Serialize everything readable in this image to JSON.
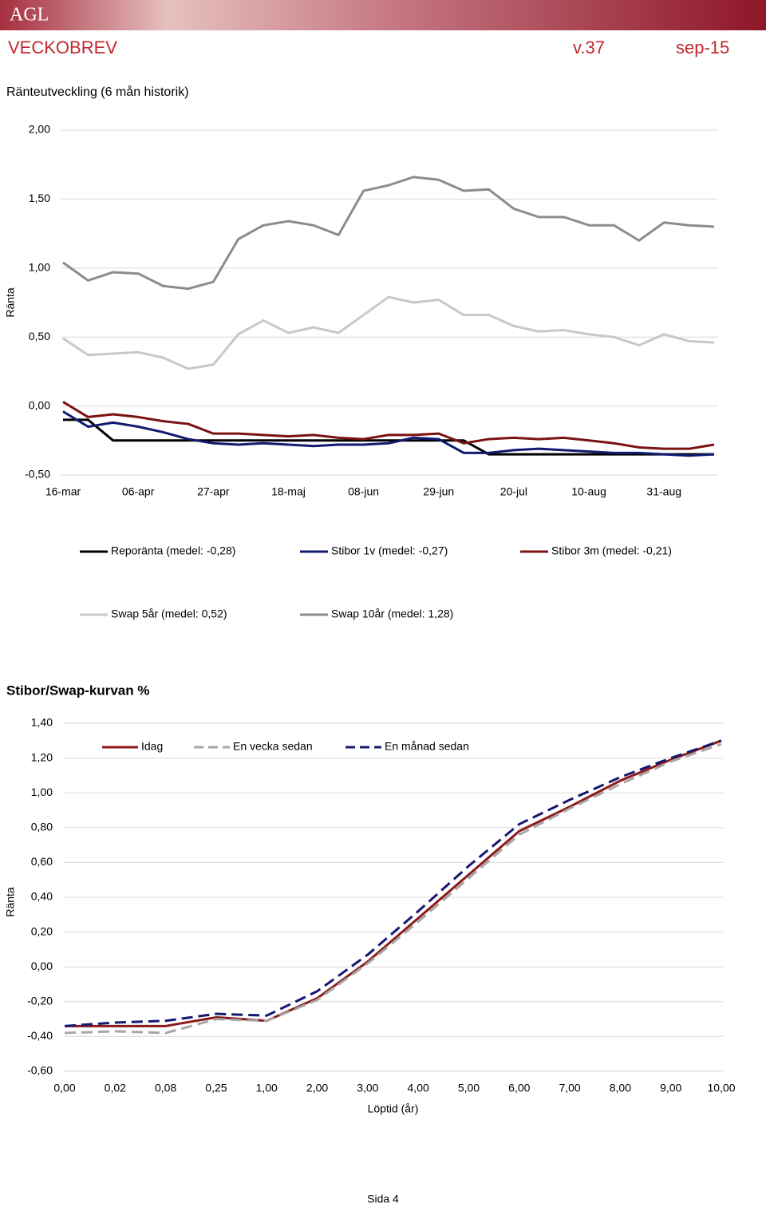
{
  "header": {
    "logo": "AGL",
    "title": "VECKOBREV",
    "week": "v.37",
    "date": "sep-15"
  },
  "chart_data": [
    {
      "type": "line",
      "title": "Ränteutveckling (6 mån historik)",
      "y_label": "Ränta",
      "categories": [
        "16-mar",
        null,
        null,
        "06-apr",
        null,
        null,
        "27-apr",
        null,
        null,
        "18-maj",
        null,
        null,
        "08-jun",
        null,
        null,
        "29-jun",
        null,
        null,
        "20-jul",
        null,
        null,
        "10-aug",
        null,
        null,
        "31-aug",
        null,
        null
      ],
      "series": [
        {
          "name": "Reporänta (medel: -0,28)",
          "color": "#000000",
          "values": [
            -0.1,
            -0.1,
            -0.25,
            -0.25,
            -0.25,
            -0.25,
            -0.25,
            -0.25,
            -0.25,
            -0.25,
            -0.25,
            -0.25,
            -0.25,
            -0.25,
            -0.25,
            -0.25,
            -0.25,
            -0.35,
            -0.35,
            -0.35,
            -0.35,
            -0.35,
            -0.35,
            -0.35,
            -0.35,
            -0.35,
            -0.35
          ]
        },
        {
          "name": "Stibor 1v (medel: -0,27)",
          "color": "#111a72",
          "values": [
            -0.04,
            -0.15,
            -0.12,
            -0.15,
            -0.19,
            -0.24,
            -0.27,
            -0.28,
            -0.27,
            -0.28,
            -0.29,
            -0.28,
            -0.28,
            -0.27,
            -0.23,
            -0.24,
            -0.34,
            -0.34,
            -0.32,
            -0.31,
            -0.32,
            -0.33,
            -0.34,
            -0.34,
            -0.35,
            -0.36,
            -0.35
          ]
        },
        {
          "name": "Stibor 3m (medel: -0,21)",
          "color": "#7a1212",
          "values": [
            0.03,
            -0.08,
            -0.06,
            -0.08,
            -0.11,
            -0.13,
            -0.2,
            -0.2,
            -0.21,
            -0.22,
            -0.21,
            -0.23,
            -0.24,
            -0.21,
            -0.21,
            -0.2,
            -0.27,
            -0.24,
            -0.23,
            -0.24,
            -0.23,
            -0.25,
            -0.27,
            -0.3,
            -0.31,
            -0.31,
            -0.28
          ]
        },
        {
          "name": "Swap 5år (medel: 0,52)",
          "color": "#c8c8c8",
          "values": [
            0.49,
            0.37,
            0.38,
            0.39,
            0.35,
            0.27,
            0.3,
            0.52,
            0.62,
            0.53,
            0.57,
            0.53,
            0.66,
            0.79,
            0.75,
            0.77,
            0.66,
            0.66,
            0.58,
            0.54,
            0.55,
            0.52,
            0.5,
            0.44,
            0.52,
            0.47,
            0.46
          ]
        },
        {
          "name": "Swap 10år (medel: 1,28)",
          "color": "#8c8c8c",
          "values": [
            1.04,
            0.91,
            0.97,
            0.96,
            0.87,
            0.85,
            0.9,
            1.21,
            1.31,
            1.34,
            1.31,
            1.24,
            1.56,
            1.6,
            1.66,
            1.64,
            1.56,
            1.57,
            1.43,
            1.37,
            1.37,
            1.31,
            1.31,
            1.2,
            1.33,
            1.31,
            1.3
          ]
        }
      ],
      "ylim": [
        -0.5,
        2
      ],
      "yticks": [
        {
          "value": -0.5,
          "label": "-0,50"
        },
        {
          "value": 0,
          "label": "0,00"
        },
        {
          "value": 0.5,
          "label": "0,50"
        },
        {
          "value": 1,
          "label": "1,00"
        },
        {
          "value": 1.5,
          "label": "1,50"
        },
        {
          "value": 2,
          "label": "2,00"
        }
      ],
      "grid": true,
      "legend": "bottom"
    },
    {
      "type": "line",
      "title": "Stibor/Swap-kurvan %",
      "x_label": "Löptid (år)",
      "y_label": "Ränta",
      "categories": [
        "0,00",
        "0,02",
        "0,08",
        "0,25",
        "1,00",
        "2,00",
        "3,00",
        "4,00",
        "5,00",
        "6,00",
        "7,00",
        "8,00",
        "9,00",
        "10,00"
      ],
      "series": [
        {
          "name": "Idag",
          "color": "#8b1a1a",
          "dash": false,
          "values": [
            -0.34,
            -0.34,
            -0.34,
            -0.29,
            -0.31,
            -0.18,
            0.03,
            0.28,
            0.53,
            0.78,
            0.92,
            1.07,
            1.19,
            1.3
          ]
        },
        {
          "name": "En vecka sedan",
          "color": "#a6a6a6",
          "dash": true,
          "values": [
            -0.38,
            -0.37,
            -0.38,
            -0.3,
            -0.31,
            -0.19,
            0.02,
            0.26,
            0.51,
            0.76,
            0.91,
            1.05,
            1.18,
            1.28
          ]
        },
        {
          "name": "En månad sedan",
          "color": "#15186e",
          "dash": true,
          "values": [
            -0.34,
            -0.32,
            -0.31,
            -0.27,
            -0.28,
            -0.14,
            0.07,
            0.32,
            0.58,
            0.82,
            0.96,
            1.09,
            1.2,
            1.3
          ]
        }
      ],
      "ylim": [
        -0.6,
        1.4
      ],
      "yticks": [
        {
          "value": -0.6,
          "label": "-0,60"
        },
        {
          "value": -0.4,
          "label": "-0,40"
        },
        {
          "value": -0.2,
          "label": "-0,20"
        },
        {
          "value": 0,
          "label": "0,00"
        },
        {
          "value": 0.2,
          "label": "0,20"
        },
        {
          "value": 0.4,
          "label": "0,40"
        },
        {
          "value": 0.6,
          "label": "0,60"
        },
        {
          "value": 0.8,
          "label": "0,80"
        },
        {
          "value": 1,
          "label": "1,00"
        },
        {
          "value": 1.2,
          "label": "1,20"
        },
        {
          "value": 1.4,
          "label": "1,40"
        }
      ],
      "grid": true,
      "legend": "top"
    }
  ],
  "footer": {
    "page": "Sida 4"
  }
}
